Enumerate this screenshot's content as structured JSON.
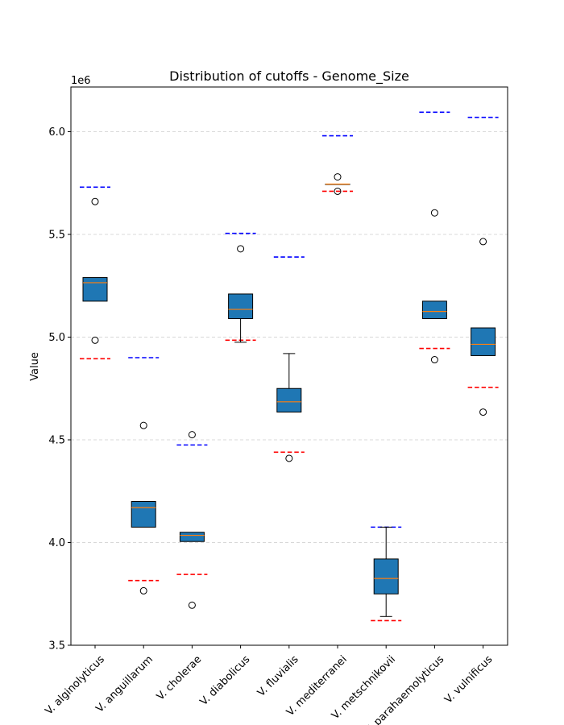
{
  "chart_data": {
    "type": "box",
    "title": "Distribution of cutoffs - Genome_Size",
    "xlabel": "",
    "ylabel": "Value",
    "y_scale_label": "1e6",
    "ylim": [
      3.5,
      6.2
    ],
    "yticks": [
      "3.5",
      "4.0",
      "4.5",
      "5.0",
      "5.5",
      "6.0"
    ],
    "ytick_values": [
      3.5,
      4.0,
      4.5,
      5.0,
      5.5,
      6.0
    ],
    "grid": "y-dashed",
    "colors": {
      "box_fill": "#1f77b4",
      "median": "#ff7f0e",
      "upper_cutoff": "#0000ff",
      "lower_cutoff": "#ff0000",
      "grid": "#cccccc"
    },
    "categories": [
      "V. alginolyticus",
      "V. anguillarum",
      "V. cholerae",
      "V. diabolicus",
      "V. fluvialis",
      "V. mediterranei",
      "V. metschnikovii",
      "V. parahaemolyticus",
      "V. vulnificus"
    ],
    "boxes": [
      {
        "q1": 5.175,
        "median": 5.265,
        "q3": 5.29,
        "whisker_low": 5.175,
        "whisker_high": 5.29,
        "outliers": [
          5.66,
          4.985
        ],
        "upper_cutoff": 5.73,
        "lower_cutoff": 4.895
      },
      {
        "q1": 4.075,
        "median": 4.17,
        "q3": 4.2,
        "whisker_low": 4.075,
        "whisker_high": 4.2,
        "outliers": [
          4.57,
          3.765
        ],
        "upper_cutoff": 4.9,
        "lower_cutoff": 3.815
      },
      {
        "q1": 4.005,
        "median": 4.035,
        "q3": 4.05,
        "whisker_low": 4.005,
        "whisker_high": 4.05,
        "outliers": [
          4.525,
          3.695
        ],
        "upper_cutoff": 4.475,
        "lower_cutoff": 3.845
      },
      {
        "q1": 5.09,
        "median": 5.135,
        "q3": 5.21,
        "whisker_low": 4.975,
        "whisker_high": 5.21,
        "outliers": [
          5.43
        ],
        "upper_cutoff": 5.505,
        "lower_cutoff": 4.985
      },
      {
        "q1": 4.635,
        "median": 4.685,
        "q3": 4.75,
        "whisker_low": 4.635,
        "whisker_high": 4.92,
        "outliers": [
          4.41
        ],
        "upper_cutoff": 5.39,
        "lower_cutoff": 4.44
      },
      {
        "q1": 5.745,
        "median": 5.745,
        "q3": 5.745,
        "whisker_low": 5.745,
        "whisker_high": 5.745,
        "outliers": [
          5.78,
          5.71
        ],
        "upper_cutoff": 5.98,
        "lower_cutoff": 5.71
      },
      {
        "q1": 3.75,
        "median": 3.825,
        "q3": 3.92,
        "whisker_low": 3.64,
        "whisker_high": 4.075,
        "outliers": [],
        "upper_cutoff": 4.075,
        "lower_cutoff": 3.62
      },
      {
        "q1": 5.09,
        "median": 5.125,
        "q3": 5.175,
        "whisker_low": 5.09,
        "whisker_high": 5.175,
        "outliers": [
          5.605,
          4.89
        ],
        "upper_cutoff": 6.095,
        "lower_cutoff": 4.945
      },
      {
        "q1": 4.91,
        "median": 4.965,
        "q3": 5.045,
        "whisker_low": 4.91,
        "whisker_high": 5.045,
        "outliers": [
          5.465,
          4.635
        ],
        "upper_cutoff": 6.07,
        "lower_cutoff": 4.755
      }
    ]
  }
}
